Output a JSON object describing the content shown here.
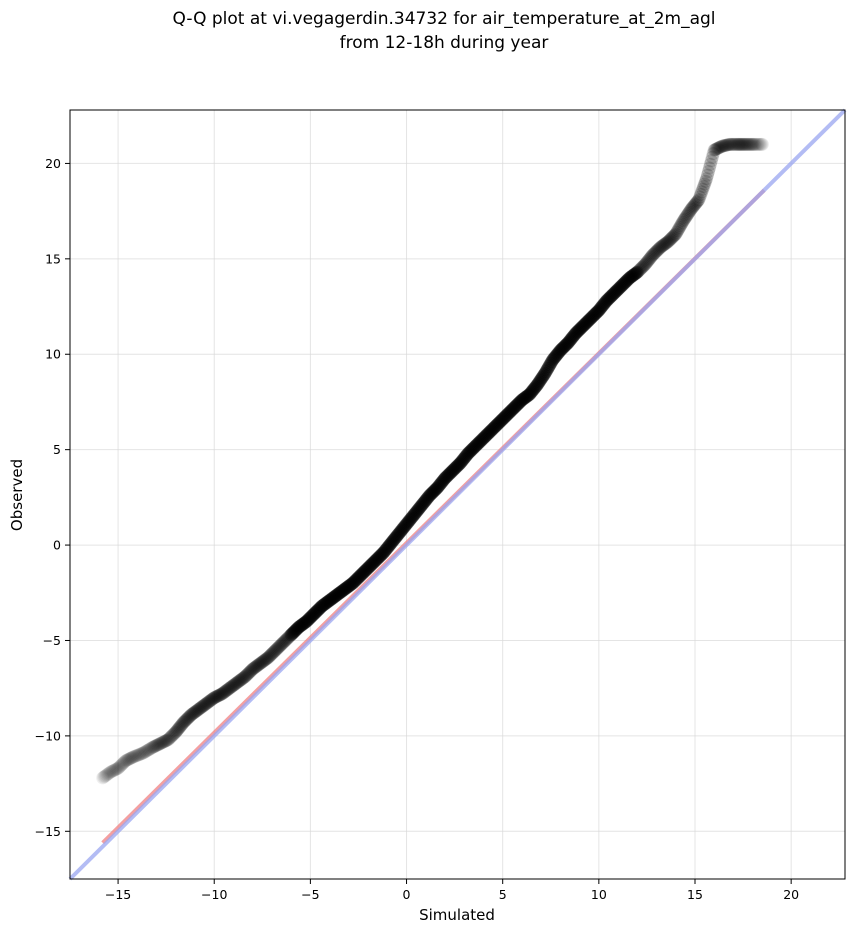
{
  "chart_data": {
    "type": "scatter",
    "title": [
      "Q-Q plot at vi.vegagerdin.34732 for air_temperature_at_2m_agl",
      "from 12-18h during year"
    ],
    "xlabel": "Simulated",
    "ylabel": "Observed",
    "xlim": [
      -17.5,
      22.8
    ],
    "ylim": [
      -17.5,
      22.8
    ],
    "xticks": [
      -15,
      -10,
      -5,
      0,
      5,
      10,
      15,
      20
    ],
    "yticks": [
      -15,
      -10,
      -5,
      0,
      5,
      10,
      15,
      20
    ],
    "xtick_labels": [
      "−15",
      "−10",
      "−5",
      "0",
      "5",
      "10",
      "15",
      "20"
    ],
    "ytick_labels": [
      "−15",
      "−10",
      "−5",
      "0",
      "5",
      "10",
      "15",
      "20"
    ],
    "grid": true,
    "reference_lines": [
      {
        "kind": "fit",
        "color": "#f08080",
        "x": [
          -15.8,
          18.6
        ],
        "y": [
          -15.6,
          18.6
        ]
      },
      {
        "kind": "identity",
        "color": "#9aa6f0",
        "x": [
          -17.5,
          22.8
        ],
        "y": [
          -17.5,
          22.8
        ]
      }
    ],
    "series": [
      {
        "marker_color": "#000000",
        "x": [
          -15.8,
          -15.4,
          -15.0,
          -14.6,
          -14.2,
          -13.7,
          -13.2,
          -12.8,
          -12.4,
          -12.0,
          -11.6,
          -11.2,
          -10.8,
          -10.4,
          -10.0,
          -9.6,
          -9.2,
          -8.8,
          -8.4,
          -8.0,
          -7.6,
          -7.2,
          -6.8,
          -6.4,
          -6.0,
          -5.6,
          -5.2,
          -4.8,
          -4.4,
          -4.0,
          -3.6,
          -3.2,
          -2.8,
          -2.4,
          -2.0,
          -1.6,
          -1.2,
          -0.8,
          -0.4,
          0.0,
          0.4,
          0.8,
          1.2,
          1.6,
          2.0,
          2.4,
          2.8,
          3.2,
          3.6,
          4.0,
          4.4,
          4.8,
          5.2,
          5.6,
          6.0,
          6.4,
          6.8,
          7.2,
          7.6,
          8.0,
          8.4,
          8.8,
          9.2,
          9.6,
          10.0,
          10.4,
          10.8,
          11.2,
          11.6,
          12.0,
          12.4,
          12.8,
          13.2,
          13.6,
          14.0,
          14.4,
          14.8,
          15.2,
          15.6,
          16.0,
          16.4,
          16.8,
          17.2,
          17.5,
          17.8,
          18.1,
          18.5
        ],
        "y": [
          -12.2,
          -11.9,
          -11.7,
          -11.3,
          -11.1,
          -10.9,
          -10.6,
          -10.4,
          -10.2,
          -9.8,
          -9.3,
          -8.9,
          -8.6,
          -8.3,
          -8.0,
          -7.8,
          -7.5,
          -7.2,
          -6.9,
          -6.5,
          -6.2,
          -5.9,
          -5.5,
          -5.1,
          -4.7,
          -4.3,
          -4.0,
          -3.6,
          -3.2,
          -2.9,
          -2.6,
          -2.3,
          -2.0,
          -1.6,
          -1.2,
          -0.8,
          -0.4,
          0.1,
          0.6,
          1.1,
          1.6,
          2.1,
          2.6,
          3.0,
          3.5,
          3.9,
          4.3,
          4.8,
          5.2,
          5.6,
          6.0,
          6.4,
          6.8,
          7.2,
          7.6,
          7.9,
          8.4,
          9.0,
          9.7,
          10.2,
          10.6,
          11.1,
          11.5,
          11.9,
          12.3,
          12.8,
          13.2,
          13.6,
          14.0,
          14.3,
          14.7,
          15.2,
          15.6,
          15.9,
          16.3,
          17.0,
          17.6,
          18.1,
          19.2,
          20.7,
          20.9,
          21.0,
          21.0,
          21.0,
          21.0,
          21.0,
          21.0
        ]
      }
    ]
  }
}
